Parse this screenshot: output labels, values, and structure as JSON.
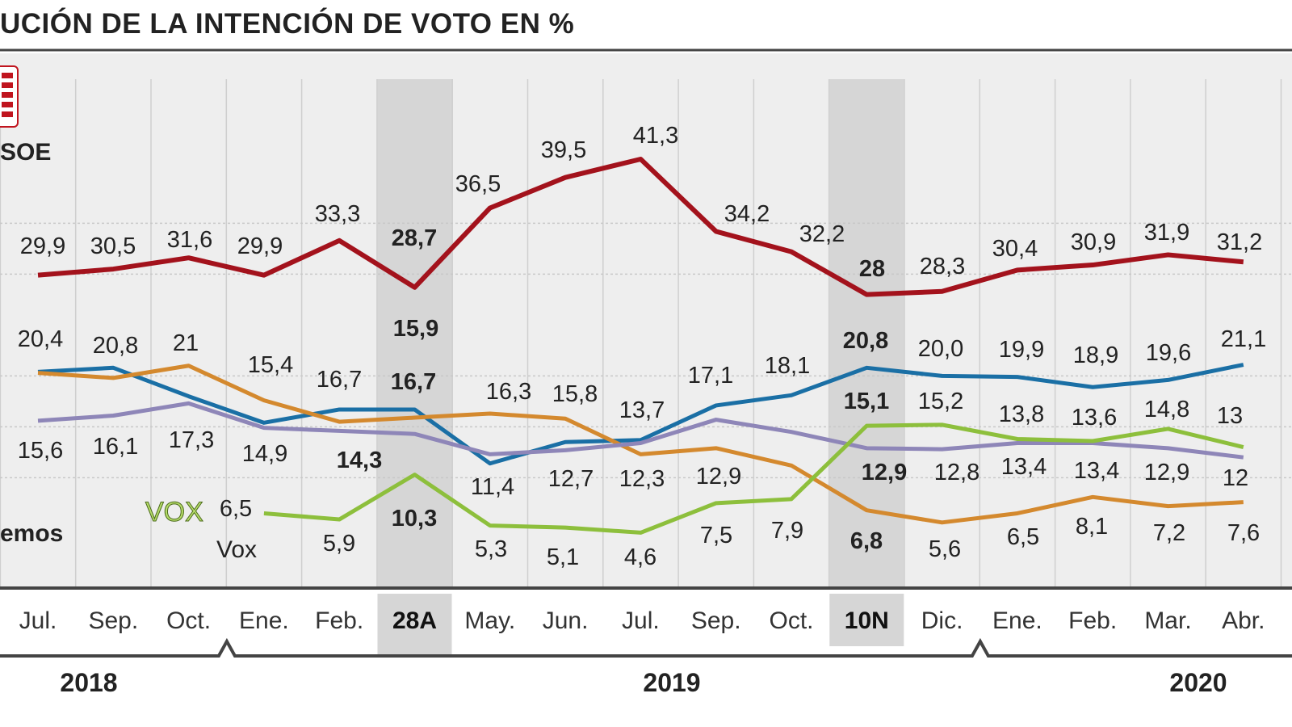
{
  "title": "UCIÓN DE LA INTENCIÓN DE VOTO EN %",
  "chart_data": {
    "type": "line",
    "title": "UCIÓN DE LA INTENCIÓN DE VOTO EN %",
    "categories": [
      "Jul.",
      "Sep.",
      "Oct.",
      "Ene.",
      "Feb.",
      "28A",
      "May.",
      "Jun.",
      "Jul.",
      "Sep.",
      "Oct.",
      "10N",
      "Dic.",
      "Ene.",
      "Feb.",
      "Mar.",
      "Abr."
    ],
    "highlighted_categories": [
      "28A",
      "10N"
    ],
    "years": [
      {
        "label": "2018",
        "from": "Jul.",
        "to": "Oct."
      },
      {
        "label": "2019",
        "from": "Ene.",
        "to": "Dic."
      },
      {
        "label": "2020",
        "from": "Ene.",
        "to": "Abr."
      }
    ],
    "ylim": [
      0,
      45
    ],
    "grid": true,
    "series": [
      {
        "name": "SOE",
        "color": "#a3121c",
        "label_pos": "above",
        "has_logo": true,
        "values": [
          29.9,
          30.5,
          31.6,
          29.9,
          33.3,
          28.7,
          36.5,
          39.5,
          41.3,
          34.2,
          32.2,
          28,
          28.3,
          30.4,
          30.9,
          31.9,
          31.2
        ],
        "labels": [
          "29,9",
          "30,5",
          "31,6",
          "29,9",
          "33,3",
          "28,7",
          "36,5",
          "39,5",
          "41,3",
          "34,2",
          "32,2",
          "28",
          "28,3",
          "30,4",
          "30,9",
          "31,9",
          "31,2"
        ]
      },
      {
        "color": "#1a6fa5",
        "label_pos": "above",
        "values": [
          20.4,
          20.8,
          18.0,
          15.4,
          16.7,
          16.7,
          11.4,
          13.5,
          13.7,
          17.1,
          18.1,
          20.8,
          20.0,
          19.9,
          18.9,
          19.6,
          21.1
        ],
        "labels": [
          "20,4",
          "20,8",
          "",
          "15,4",
          "16,7",
          "16,7",
          "11,4",
          "",
          "13,7",
          "17,1",
          "18,1",
          "20,8",
          "20,0",
          "19,9",
          "18,9",
          "19,6",
          "21,1"
        ]
      },
      {
        "color": "#d4892e",
        "label_pos": "above",
        "values": [
          20.3,
          19.8,
          21,
          17.6,
          15.5,
          15.9,
          16.3,
          15.8,
          12.3,
          12.9,
          11.2,
          6.8,
          5.6,
          6.5,
          8.1,
          7.2,
          7.6
        ],
        "labels": [
          "",
          "",
          "21",
          "",
          "",
          "15,9",
          "16,3",
          "15,8",
          "12,3",
          "12,9",
          "",
          "6,8",
          "5,6",
          "6,5",
          "8,1",
          "7,2",
          "7,6"
        ]
      },
      {
        "name": "emos",
        "color": "#8e86b8",
        "label_pos": "below",
        "values": [
          15.6,
          16.1,
          17.3,
          14.9,
          14.6,
          14.3,
          12.3,
          12.7,
          13.4,
          15.7,
          14.5,
          12.9,
          12.8,
          13.4,
          13.4,
          12.9,
          12
        ],
        "labels": [
          "15,6",
          "16,1",
          "17,3",
          "14,9",
          "",
          "14,3",
          "",
          "12,7",
          "",
          "",
          "",
          "12,9",
          "12,8",
          "13,4",
          "13,4",
          "12,9",
          "12"
        ]
      },
      {
        "name": "Vox",
        "color": "#8dbf3c",
        "label_pos": "below",
        "logo_text": "VOX",
        "values": [
          null,
          null,
          null,
          6.5,
          5.9,
          10.3,
          5.3,
          5.1,
          4.6,
          7.5,
          7.9,
          15.1,
          15.2,
          13.8,
          13.6,
          14.8,
          13
        ],
        "labels": [
          "",
          "",
          "",
          "6,5",
          "5,9",
          "10,3",
          "5,3",
          "5,1",
          "4,6",
          "7,5",
          "7,9",
          "15,1",
          "15,2",
          "13,8",
          "13,6",
          "14,8",
          "13"
        ]
      }
    ]
  }
}
